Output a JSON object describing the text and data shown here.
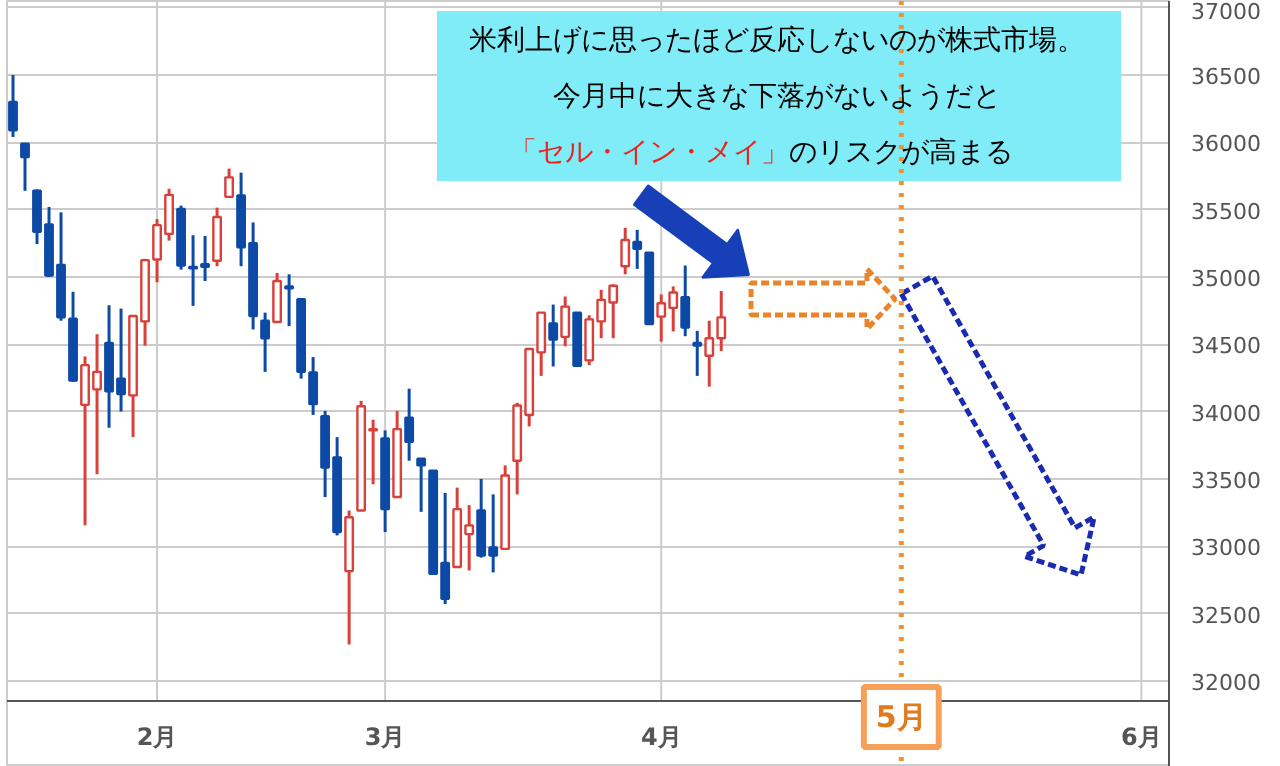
{
  "chart_data": {
    "type": "candlestick",
    "categories": [
      null,
      null,
      null,
      null,
      null,
      null,
      null,
      null,
      null,
      null,
      null,
      null,
      "2月",
      null,
      null,
      null,
      null,
      null,
      null,
      null,
      null,
      null,
      null,
      null,
      null,
      null,
      null,
      null,
      null,
      null,
      null,
      "3月",
      null,
      null,
      null,
      null,
      null,
      null,
      null,
      null,
      null,
      null,
      null,
      null,
      null,
      null,
      null,
      null,
      null,
      null,
      null,
      null,
      null,
      null,
      "4月",
      null,
      null,
      null,
      null,
      null,
      null,
      null,
      null,
      null,
      null,
      null,
      null,
      null,
      null,
      null,
      null,
      null,
      null,
      null,
      "5月",
      null,
      null,
      null,
      null,
      null,
      null,
      null,
      null,
      null,
      null,
      null,
      null,
      null,
      null,
      null,
      null,
      null,
      null,
      null,
      "6月",
      null,
      null
    ],
    "ohlc": [
      [
        36300,
        36500,
        36040,
        36090
      ],
      [
        35990,
        35990,
        35640,
        35890
      ],
      [
        35640,
        35650,
        35245,
        35335
      ],
      [
        35390,
        35520,
        35000,
        35010
      ],
      [
        35090,
        35480,
        34675,
        34700
      ],
      [
        34690,
        34890,
        34220,
        34230
      ],
      [
        34050,
        34410,
        33155,
        34345
      ],
      [
        34165,
        34575,
        33535,
        34295
      ],
      [
        34510,
        34790,
        33880,
        34150
      ],
      [
        34245,
        34765,
        34000,
        34130
      ],
      [
        34120,
        34715,
        33810,
        34710
      ],
      [
        34670,
        35135,
        34490,
        35125
      ],
      [
        35130,
        35430,
        34960,
        35385
      ],
      [
        35320,
        35655,
        35270,
        35610
      ],
      [
        35505,
        35530,
        35055,
        35085
      ],
      [
        35075,
        35310,
        34785,
        35065
      ],
      [
        35095,
        35305,
        34970,
        35075
      ],
      [
        35120,
        35515,
        35080,
        35445
      ],
      [
        35595,
        35805,
        35595,
        35740
      ],
      [
        35605,
        35775,
        35080,
        35220
      ],
      [
        35250,
        35405,
        34610,
        34710
      ],
      [
        34675,
        34735,
        34295,
        34545
      ],
      [
        34665,
        35030,
        34665,
        34970
      ],
      [
        34930,
        35020,
        34635,
        34915
      ],
      [
        34835,
        34835,
        34245,
        34295
      ],
      [
        34290,
        34405,
        33975,
        34055
      ],
      [
        33965,
        34005,
        33365,
        33585
      ],
      [
        33660,
        33810,
        33080,
        33105
      ],
      [
        32815,
        33265,
        32270,
        33215
      ],
      [
        33265,
        34080,
        33265,
        34040
      ],
      [
        33860,
        33940,
        33460,
        33870
      ],
      [
        33800,
        33860,
        33105,
        33275
      ],
      [
        33365,
        34005,
        33365,
        33870
      ],
      [
        33955,
        34170,
        33635,
        33775
      ],
      [
        33650,
        33650,
        33255,
        33600
      ],
      [
        33560,
        33560,
        32790,
        32795
      ],
      [
        32875,
        33395,
        32570,
        32610
      ],
      [
        32845,
        33435,
        32845,
        33275
      ],
      [
        33090,
        33305,
        32820,
        33155
      ],
      [
        33265,
        33500,
        32915,
        32930
      ],
      [
        32990,
        33385,
        32805,
        32930
      ],
      [
        32980,
        33600,
        32980,
        33525
      ],
      [
        33635,
        34065,
        33385,
        34045
      ],
      [
        33975,
        34465,
        33890,
        34465
      ],
      [
        34440,
        34735,
        34265,
        34735
      ],
      [
        34655,
        34795,
        34335,
        34535
      ],
      [
        34555,
        34855,
        34485,
        34780
      ],
      [
        34735,
        34735,
        34335,
        34340
      ],
      [
        34380,
        34715,
        34345,
        34685
      ],
      [
        34670,
        34905,
        34545,
        34830
      ],
      [
        34810,
        34945,
        34545,
        34935
      ],
      [
        35080,
        35365,
        35020,
        35275
      ],
      [
        35260,
        35350,
        35060,
        35210
      ],
      [
        35180,
        35180,
        34650,
        34650
      ],
      [
        34705,
        34870,
        34520,
        34805
      ],
      [
        34770,
        34930,
        34595,
        34885
      ],
      [
        34850,
        35085,
        34560,
        34625
      ],
      [
        34510,
        34600,
        34265,
        34490
      ],
      [
        34415,
        34675,
        34185,
        34545
      ],
      [
        34545,
        34895,
        34450,
        34700
      ],
      null,
      null,
      null,
      null,
      null,
      null,
      null,
      null,
      null,
      null,
      null,
      null,
      null,
      null,
      null,
      null,
      null,
      null,
      null,
      null,
      null,
      null,
      null,
      null,
      null,
      null,
      null,
      null,
      null,
      null,
      null,
      null,
      null,
      null,
      null,
      null,
      null
    ],
    "colors": [
      "#0d4aa6",
      "#0d4aa6",
      "#0d4aa6",
      "#0d4aa6",
      "#0d4aa6",
      "#0d4aa6",
      "#d9403a",
      "#d9403a",
      "#0d4aa6",
      "#0d4aa6",
      "#d9403a",
      "#d9403a",
      "#d9403a",
      "#d9403a",
      "#0d4aa6",
      "#0d4aa6",
      "#0d4aa6",
      "#d9403a",
      "#d9403a",
      "#0d4aa6",
      "#0d4aa6",
      "#0d4aa6",
      "#d9403a",
      "#0d4aa6",
      "#0d4aa6",
      "#0d4aa6",
      "#0d4aa6",
      "#0d4aa6",
      "#d9403a",
      "#d9403a",
      "#d9403a",
      "#0d4aa6",
      "#d9403a",
      "#0d4aa6",
      "#0d4aa6",
      "#0d4aa6",
      "#0d4aa6",
      "#d9403a",
      "#d9403a",
      "#0d4aa6",
      "#0d4aa6",
      "#d9403a",
      "#d9403a",
      "#d9403a",
      "#d9403a",
      "#0d4aa6",
      "#d9403a",
      "#0d4aa6",
      "#d9403a",
      "#d9403a",
      "#d9403a",
      "#d9403a",
      "#0d4aa6",
      "#0d4aa6",
      "#d9403a",
      "#d9403a",
      "#0d4aa6",
      "#0d4aa6",
      "#d9403a",
      "#d9403a",
      null,
      null,
      null,
      null,
      null,
      null,
      null,
      null,
      null,
      null,
      null,
      null,
      null,
      null,
      null,
      null,
      null,
      null,
      null,
      null,
      null,
      null,
      null,
      null,
      null,
      null,
      null,
      null,
      null,
      null,
      null,
      null,
      null,
      null,
      null,
      null,
      null
    ],
    "ylim": [
      31850,
      37050
    ],
    "yticks": [
      32000,
      32500,
      33000,
      33500,
      34000,
      34500,
      35000,
      35500,
      36000,
      36500,
      37000
    ],
    "grid": true,
    "ref_lines": [
      {
        "axis": "x",
        "value": "5月",
        "color": "#f0922e",
        "line_style": "dotted"
      }
    ],
    "annotations": [
      "米利上げに思ったほど反応しないのが株式市場。",
      "今月中に大きな下落がないようだと",
      "「セル・イン・メイ」",
      "のリスクが高まる"
    ]
  }
}
